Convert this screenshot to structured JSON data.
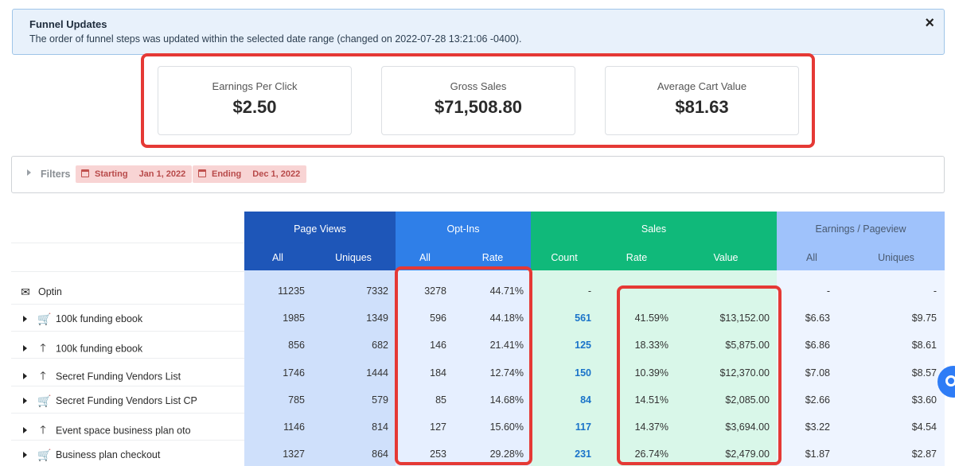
{
  "alert": {
    "title": "Funnel Updates",
    "message": "The order of funnel steps was updated within the selected date range (changed on 2022-07-28 13:21:06 -0400).",
    "close": "×"
  },
  "kpis": [
    {
      "label": "Earnings Per Click",
      "value": "$2.50"
    },
    {
      "label": "Gross Sales",
      "value": "$71,508.80"
    },
    {
      "label": "Average Cart Value",
      "value": "$81.63"
    }
  ],
  "filters": {
    "label": "Filters",
    "start": {
      "label": "Starting",
      "date": "Jan 1, 2022"
    },
    "end": {
      "label": "Ending",
      "date": "Dec 1, 2022"
    }
  },
  "table": {
    "groups": {
      "page_views": "Page Views",
      "opt_ins": "Opt-Ins",
      "sales": "Sales",
      "earnings": "Earnings / Pageview"
    },
    "subheaders": {
      "pv_all": "All",
      "pv_uniques": "Uniques",
      "oi_all": "All",
      "oi_rate": "Rate",
      "s_count": "Count",
      "s_rate": "Rate",
      "s_value": "Value",
      "e_all": "All",
      "e_uniques": "Uniques"
    },
    "rows": [
      {
        "name": "Optin",
        "icon": "envelope-icon",
        "expandable": false,
        "pv_all": "11235",
        "pv_uniques": "7332",
        "oi_all": "3278",
        "oi_rate": "44.71%",
        "s_count": "-",
        "s_rate": "",
        "s_value": "",
        "e_all": "-",
        "e_uniques": "-"
      },
      {
        "name": "100k funding ebook",
        "icon": "cart-icon",
        "expandable": true,
        "pv_all": "1985",
        "pv_uniques": "1349",
        "oi_all": "596",
        "oi_rate": "44.18%",
        "s_count": "561",
        "s_rate": "41.59%",
        "s_value": "$13,152.00",
        "e_all": "$6.63",
        "e_uniques": "$9.75"
      },
      {
        "name": "100k funding ebook",
        "icon": "arrow-up-icon",
        "expandable": true,
        "pv_all": "856",
        "pv_uniques": "682",
        "oi_all": "146",
        "oi_rate": "21.41%",
        "s_count": "125",
        "s_rate": "18.33%",
        "s_value": "$5,875.00",
        "e_all": "$6.86",
        "e_uniques": "$8.61"
      },
      {
        "name": "Secret Funding Vendors List",
        "icon": "arrow-up-icon",
        "expandable": true,
        "pv_all": "1746",
        "pv_uniques": "1444",
        "oi_all": "184",
        "oi_rate": "12.74%",
        "s_count": "150",
        "s_rate": "10.39%",
        "s_value": "$12,370.00",
        "e_all": "$7.08",
        "e_uniques": "$8.57"
      },
      {
        "name": "Secret Funding Vendors List CP",
        "icon": "cart-icon",
        "expandable": true,
        "pv_all": "785",
        "pv_uniques": "579",
        "oi_all": "85",
        "oi_rate": "14.68%",
        "s_count": "84",
        "s_rate": "14.51%",
        "s_value": "$2,085.00",
        "e_all": "$2.66",
        "e_uniques": "$3.60"
      },
      {
        "name": "Event space business plan oto",
        "icon": "arrow-up-icon",
        "expandable": true,
        "pv_all": "1146",
        "pv_uniques": "814",
        "oi_all": "127",
        "oi_rate": "15.60%",
        "s_count": "117",
        "s_rate": "14.37%",
        "s_value": "$3,694.00",
        "e_all": "$3.22",
        "e_uniques": "$4.54"
      },
      {
        "name": "Business plan checkout",
        "icon": "cart-icon",
        "expandable": true,
        "pv_all": "1327",
        "pv_uniques": "864",
        "oi_all": "253",
        "oi_rate": "29.28%",
        "s_count": "231",
        "s_rate": "26.74%",
        "s_value": "$2,479.00",
        "e_all": "$1.87",
        "e_uniques": "$2.87"
      }
    ]
  },
  "colors": {
    "page_views_header": "#1e56b8",
    "page_views_body": "#cfe0fb",
    "opt_ins_header": "#2f7fe8",
    "opt_ins_body": "#e6efff",
    "sales_header": "#10b97a",
    "sales_body": "#d9f7e9",
    "earnings_header": "#9fc2fb",
    "earnings_body": "#eef4ff",
    "highlight": "#e53935",
    "link": "#1a73c9"
  }
}
